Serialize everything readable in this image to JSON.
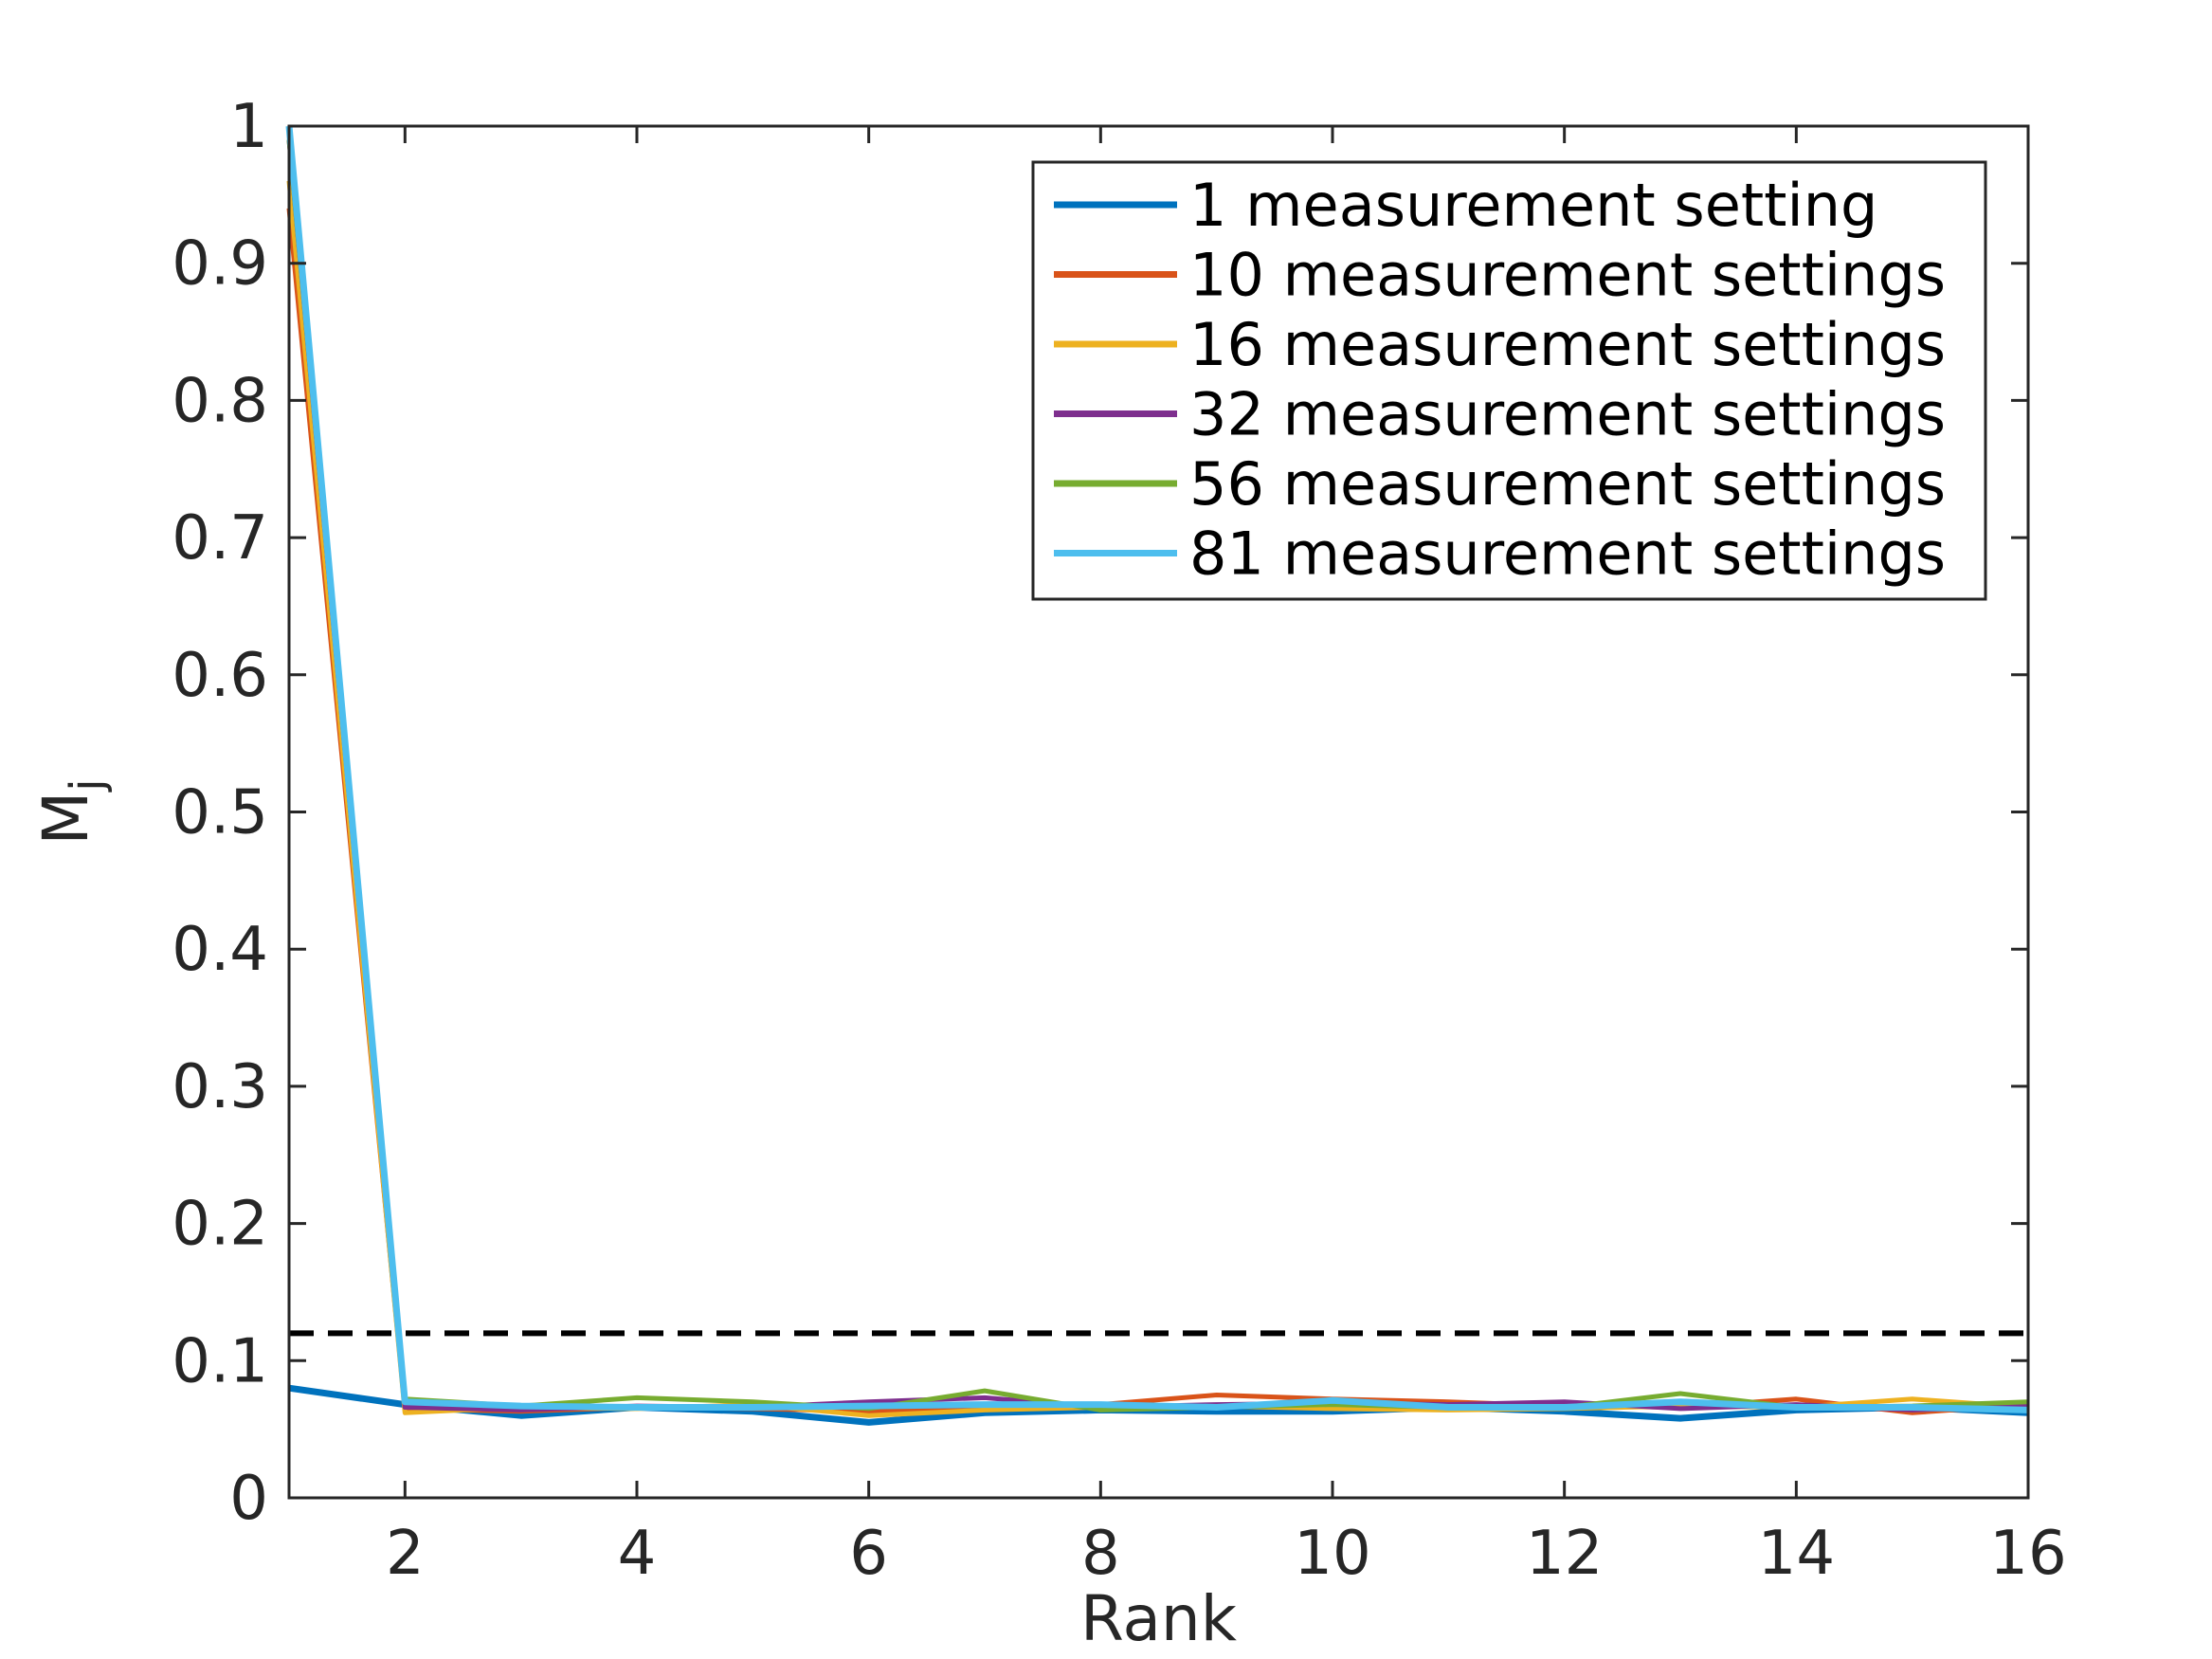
{
  "chart_data": {
    "type": "line",
    "title": "",
    "xlabel": "Rank",
    "ylabel": "M",
    "ylabel_subscript": "j",
    "xlim": [
      1,
      16
    ],
    "ylim": [
      0,
      1
    ],
    "xticks": [
      2,
      4,
      6,
      8,
      10,
      12,
      14,
      16
    ],
    "xtick_labels": [
      "2",
      "4",
      "6",
      "8",
      "10",
      "12",
      "14",
      "16"
    ],
    "yticks": [
      0,
      0.1,
      0.2,
      0.3,
      0.4,
      0.5,
      0.6,
      0.7,
      0.8,
      0.9,
      1
    ],
    "ytick_labels": [
      "0",
      "0.1",
      "0.2",
      "0.3",
      "0.4",
      "0.5",
      "0.6",
      "0.7",
      "0.8",
      "0.9",
      "1"
    ],
    "grid": false,
    "legend_position": "top-right",
    "x": [
      1,
      2,
      3,
      4,
      5,
      6,
      7,
      8,
      9,
      10,
      11,
      12,
      13,
      14,
      15,
      16
    ],
    "series": [
      {
        "name": "1 measurement setting",
        "color": "#0072BD",
        "values": [
          0.08,
          0.068,
          0.06,
          0.066,
          0.063,
          0.055,
          0.062,
          0.064,
          0.063,
          0.063,
          0.066,
          0.063,
          0.058,
          0.064,
          0.066,
          0.062
        ]
      },
      {
        "name": "10 measurement settings",
        "color": "#D95319",
        "values": [
          0.94,
          0.065,
          0.063,
          0.066,
          0.065,
          0.063,
          0.066,
          0.068,
          0.075,
          0.072,
          0.07,
          0.067,
          0.066,
          0.072,
          0.062,
          0.068
        ]
      },
      {
        "name": "16 measurement settings",
        "color": "#EDB120",
        "values": [
          0.96,
          0.062,
          0.066,
          0.065,
          0.068,
          0.06,
          0.064,
          0.066,
          0.067,
          0.065,
          0.064,
          0.065,
          0.067,
          0.066,
          0.072,
          0.066
        ]
      },
      {
        "name": "32 measurement settings",
        "color": "#7E2F8E",
        "values": [
          0.99,
          0.066,
          0.064,
          0.067,
          0.066,
          0.07,
          0.073,
          0.066,
          0.068,
          0.069,
          0.068,
          0.07,
          0.065,
          0.068,
          0.064,
          0.067
        ]
      },
      {
        "name": "56 measurement settings",
        "color": "#77AC30",
        "values": [
          0.99,
          0.072,
          0.067,
          0.073,
          0.07,
          0.065,
          0.078,
          0.064,
          0.066,
          0.068,
          0.066,
          0.066,
          0.076,
          0.066,
          0.067,
          0.07
        ]
      },
      {
        "name": "81 measurement settings",
        "color": "#4DBEEE",
        "values": [
          1.0,
          0.07,
          0.067,
          0.066,
          0.066,
          0.067,
          0.068,
          0.068,
          0.066,
          0.071,
          0.066,
          0.066,
          0.07,
          0.066,
          0.066,
          0.064
        ]
      }
    ],
    "reference_line": {
      "y": 0.12,
      "style": "dashed",
      "color": "#000000"
    }
  }
}
